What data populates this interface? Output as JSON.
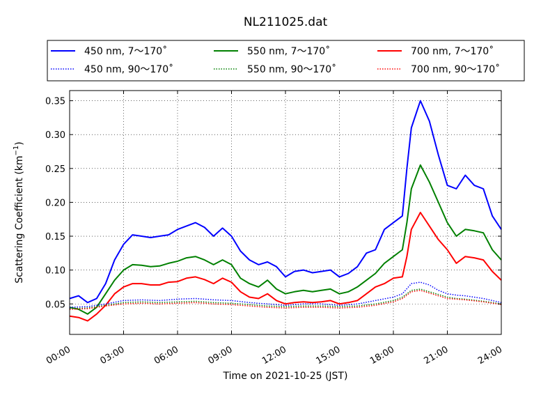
{
  "chart_data": {
    "type": "line",
    "title": "NL211025.dat",
    "xlabel": "Time on 2021-10-25 (JST)",
    "ylabel": "Scattering Coefficient (km",
    "ylabel_sup": "−1",
    "ylabel_end": ")",
    "x_ticks": [
      "00:00",
      "03:00",
      "06:00",
      "09:00",
      "12:00",
      "15:00",
      "18:00",
      "21:00",
      "24:00"
    ],
    "y_ticks": [
      "0.05",
      "0.10",
      "0.15",
      "0.20",
      "0.25",
      "0.30",
      "0.35"
    ],
    "xlim": [
      "00:00",
      "24:00"
    ],
    "ylim": [
      0.005,
      0.365
    ],
    "grid": true,
    "legend_position": "top",
    "series": [
      {
        "name": "450 nm, 7～170˚",
        "color": "#0000ff",
        "style": "solid",
        "x": [
          "00:00",
          "00:30",
          "01:00",
          "01:30",
          "02:00",
          "02:30",
          "03:00",
          "03:30",
          "04:00",
          "04:30",
          "05:00",
          "05:30",
          "06:00",
          "06:30",
          "07:00",
          "07:30",
          "08:00",
          "08:30",
          "09:00",
          "09:30",
          "10:00",
          "10:30",
          "11:00",
          "11:30",
          "12:00",
          "12:30",
          "13:00",
          "13:30",
          "14:00",
          "14:30",
          "15:00",
          "15:30",
          "16:00",
          "16:30",
          "17:00",
          "17:30",
          "18:00",
          "18:30",
          "18:45",
          "19:00",
          "19:30",
          "20:00",
          "20:30",
          "21:00",
          "21:30",
          "22:00",
          "22:30",
          "23:00",
          "23:30",
          "24:00"
        ],
        "y": [
          0.058,
          0.062,
          0.052,
          0.058,
          0.08,
          0.115,
          0.138,
          0.152,
          0.15,
          0.148,
          0.15,
          0.152,
          0.16,
          0.165,
          0.17,
          0.163,
          0.15,
          0.162,
          0.15,
          0.128,
          0.115,
          0.108,
          0.112,
          0.105,
          0.09,
          0.098,
          0.1,
          0.096,
          0.098,
          0.1,
          0.09,
          0.095,
          0.105,
          0.125,
          0.13,
          0.16,
          0.17,
          0.18,
          0.25,
          0.31,
          0.35,
          0.32,
          0.27,
          0.225,
          0.22,
          0.24,
          0.225,
          0.22,
          0.18,
          0.16
        ]
      },
      {
        "name": "550 nm, 7～170˚",
        "color": "#008000",
        "style": "solid",
        "x": [
          "00:00",
          "00:30",
          "01:00",
          "01:30",
          "02:00",
          "02:30",
          "03:00",
          "03:30",
          "04:00",
          "04:30",
          "05:00",
          "05:30",
          "06:00",
          "06:30",
          "07:00",
          "07:30",
          "08:00",
          "08:30",
          "09:00",
          "09:30",
          "10:00",
          "10:30",
          "11:00",
          "11:30",
          "12:00",
          "12:30",
          "13:00",
          "13:30",
          "14:00",
          "14:30",
          "15:00",
          "15:30",
          "16:00",
          "16:30",
          "17:00",
          "17:30",
          "18:00",
          "18:30",
          "18:45",
          "19:00",
          "19:30",
          "20:00",
          "20:30",
          "21:00",
          "21:30",
          "22:00",
          "22:30",
          "23:00",
          "23:30",
          "24:00"
        ],
        "y": [
          0.045,
          0.042,
          0.035,
          0.045,
          0.065,
          0.085,
          0.1,
          0.108,
          0.107,
          0.105,
          0.106,
          0.11,
          0.113,
          0.118,
          0.12,
          0.115,
          0.108,
          0.115,
          0.108,
          0.088,
          0.08,
          0.075,
          0.085,
          0.072,
          0.065,
          0.068,
          0.07,
          0.068,
          0.07,
          0.072,
          0.065,
          0.068,
          0.075,
          0.085,
          0.095,
          0.11,
          0.12,
          0.13,
          0.17,
          0.22,
          0.255,
          0.23,
          0.2,
          0.17,
          0.15,
          0.16,
          0.158,
          0.155,
          0.13,
          0.115
        ]
      },
      {
        "name": "700 nm, 7～170˚",
        "color": "#ff0000",
        "style": "solid",
        "x": [
          "00:00",
          "00:30",
          "01:00",
          "01:30",
          "02:00",
          "02:30",
          "03:00",
          "03:30",
          "04:00",
          "04:30",
          "05:00",
          "05:30",
          "06:00",
          "06:30",
          "07:00",
          "07:30",
          "08:00",
          "08:30",
          "09:00",
          "09:30",
          "10:00",
          "10:30",
          "11:00",
          "11:30",
          "12:00",
          "12:30",
          "13:00",
          "13:30",
          "14:00",
          "14:30",
          "15:00",
          "15:30",
          "16:00",
          "16:30",
          "17:00",
          "17:30",
          "18:00",
          "18:30",
          "18:45",
          "19:00",
          "19:30",
          "20:00",
          "20:30",
          "21:00",
          "21:30",
          "22:00",
          "22:30",
          "23:00",
          "23:30",
          "24:00"
        ],
        "y": [
          0.032,
          0.03,
          0.025,
          0.035,
          0.048,
          0.065,
          0.075,
          0.08,
          0.08,
          0.078,
          0.078,
          0.082,
          0.083,
          0.088,
          0.09,
          0.086,
          0.08,
          0.088,
          0.082,
          0.068,
          0.06,
          0.058,
          0.065,
          0.055,
          0.05,
          0.052,
          0.053,
          0.052,
          0.053,
          0.055,
          0.05,
          0.052,
          0.055,
          0.065,
          0.075,
          0.08,
          0.088,
          0.09,
          0.12,
          0.16,
          0.185,
          0.165,
          0.145,
          0.13,
          0.11,
          0.12,
          0.118,
          0.115,
          0.098,
          0.085
        ]
      },
      {
        "name": "450 nm, 90～170˚",
        "color": "#0000ff",
        "style": "dotted",
        "x": [
          "00:00",
          "01:00",
          "02:00",
          "03:00",
          "04:00",
          "05:00",
          "06:00",
          "07:00",
          "08:00",
          "09:00",
          "10:00",
          "11:00",
          "12:00",
          "13:00",
          "14:00",
          "15:00",
          "16:00",
          "17:00",
          "18:00",
          "18:30",
          "19:00",
          "19:30",
          "20:00",
          "20:30",
          "21:00",
          "21:30",
          "22:00",
          "23:00",
          "24:00"
        ],
        "y": [
          0.045,
          0.046,
          0.05,
          0.055,
          0.056,
          0.055,
          0.057,
          0.058,
          0.056,
          0.055,
          0.052,
          0.05,
          0.048,
          0.05,
          0.05,
          0.048,
          0.05,
          0.055,
          0.06,
          0.065,
          0.08,
          0.082,
          0.078,
          0.07,
          0.065,
          0.063,
          0.062,
          0.058,
          0.052
        ]
      },
      {
        "name": "550 nm, 90～170˚",
        "color": "#008000",
        "style": "dotted",
        "x": [
          "00:00",
          "01:00",
          "02:00",
          "03:00",
          "04:00",
          "05:00",
          "06:00",
          "07:00",
          "08:00",
          "09:00",
          "10:00",
          "11:00",
          "12:00",
          "13:00",
          "14:00",
          "15:00",
          "16:00",
          "17:00",
          "18:00",
          "18:30",
          "19:00",
          "19:30",
          "20:00",
          "20:30",
          "21:00",
          "21:30",
          "22:00",
          "23:00",
          "24:00"
        ],
        "y": [
          0.043,
          0.044,
          0.048,
          0.052,
          0.053,
          0.052,
          0.053,
          0.054,
          0.052,
          0.051,
          0.049,
          0.047,
          0.046,
          0.047,
          0.047,
          0.046,
          0.047,
          0.05,
          0.055,
          0.06,
          0.07,
          0.072,
          0.068,
          0.064,
          0.06,
          0.058,
          0.057,
          0.054,
          0.05
        ]
      },
      {
        "name": "700 nm, 90～170˚",
        "color": "#ff0000",
        "style": "dotted",
        "x": [
          "00:00",
          "01:00",
          "02:00",
          "03:00",
          "04:00",
          "05:00",
          "06:00",
          "07:00",
          "08:00",
          "09:00",
          "10:00",
          "11:00",
          "12:00",
          "13:00",
          "14:00",
          "15:00",
          "16:00",
          "17:00",
          "18:00",
          "18:30",
          "19:00",
          "19:30",
          "20:00",
          "20:30",
          "21:00",
          "21:30",
          "22:00",
          "23:00",
          "24:00"
        ],
        "y": [
          0.042,
          0.043,
          0.047,
          0.05,
          0.051,
          0.05,
          0.051,
          0.052,
          0.05,
          0.049,
          0.047,
          0.045,
          0.044,
          0.045,
          0.045,
          0.044,
          0.045,
          0.048,
          0.053,
          0.058,
          0.068,
          0.07,
          0.066,
          0.062,
          0.058,
          0.057,
          0.056,
          0.053,
          0.049
        ]
      }
    ]
  }
}
